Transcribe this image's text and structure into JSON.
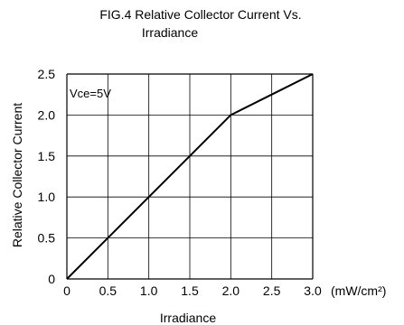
{
  "chart_data": {
    "type": "line",
    "title_lines": [
      "FIG.4 Relative Collector Current Vs.",
      "Irradiance"
    ],
    "xlabel": "Irradiance",
    "x_unit": "(mW/cm²)",
    "ylabel": "Relative Collector Current",
    "annotation": "Vce=5V",
    "xlim": [
      0,
      3.0
    ],
    "ylim": [
      0,
      2.5
    ],
    "x_ticks": [
      0,
      0.5,
      1.0,
      1.5,
      2.0,
      2.5,
      3.0
    ],
    "x_tick_labels": [
      "0",
      "0.5",
      "1.0",
      "1.5",
      "2.0",
      "2.5",
      "3.0"
    ],
    "y_ticks": [
      0,
      0.5,
      1.0,
      1.5,
      2.0,
      2.5
    ],
    "y_tick_labels": [
      "0",
      "0.5",
      "1.0",
      "1.5",
      "2.0",
      "2.5"
    ],
    "grid": true,
    "series": [
      {
        "x": [
          0,
          0.5,
          1.0,
          1.5,
          2.0,
          2.5,
          3.0
        ],
        "y": [
          0,
          0.5,
          1.0,
          1.5,
          2.0,
          2.25,
          2.5
        ],
        "color": "#000000"
      }
    ]
  }
}
